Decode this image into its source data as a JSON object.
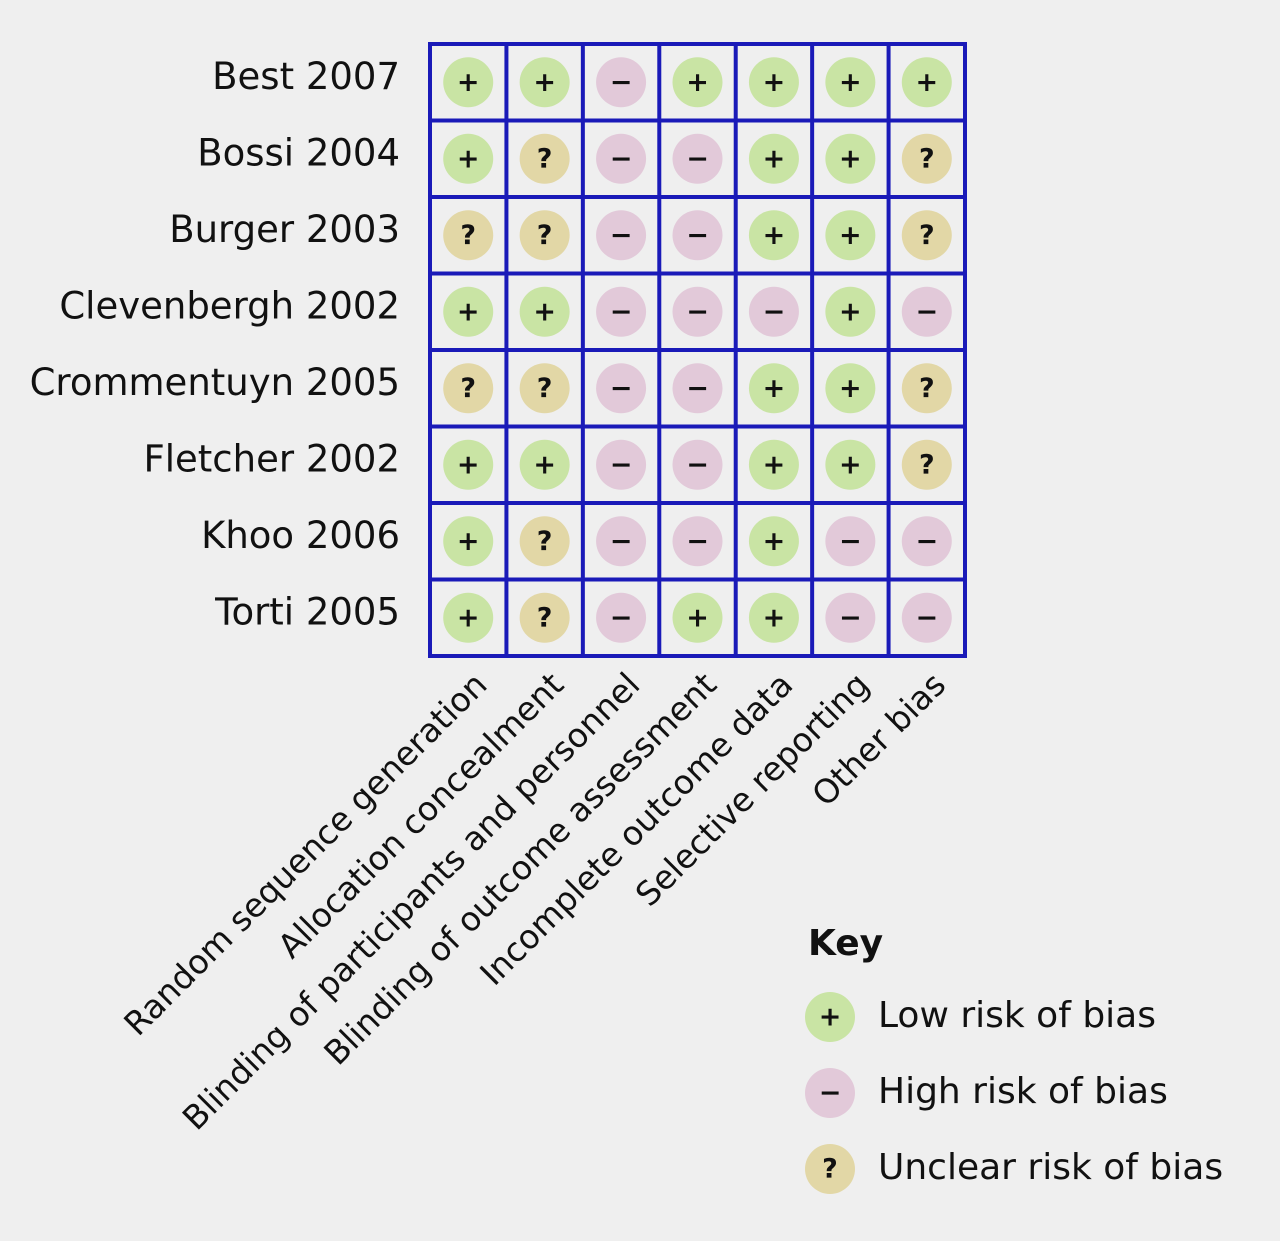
{
  "studies": [
    "Best 2007",
    "Bossi 2004",
    "Burger 2003",
    "Clevenbergh 2002",
    "Crommentuyn 2005",
    "Fletcher 2002",
    "Khoo 2006",
    "Torti 2005"
  ],
  "domains": [
    "Random sequence generation",
    "Allocation concealment",
    "Blinding of participants and personnel",
    "Blinding of outcome assessment",
    "Incomplete outcome data",
    "Selective reporting",
    "Other bias"
  ],
  "cells": [
    [
      "+",
      "+",
      "−",
      "+",
      "+",
      "+",
      "+"
    ],
    [
      "+",
      "?",
      "−",
      "−",
      "+",
      "+",
      "?"
    ],
    [
      "?",
      "?",
      "−",
      "−",
      "+",
      "+",
      "?"
    ],
    [
      "+",
      "+",
      "−",
      "−",
      "−",
      "+",
      "−"
    ],
    [
      "?",
      "?",
      "−",
      "−",
      "+",
      "+",
      "?"
    ],
    [
      "+",
      "+",
      "−",
      "−",
      "+",
      "+",
      "?"
    ],
    [
      "+",
      "?",
      "−",
      "−",
      "+",
      "−",
      "−"
    ],
    [
      "+",
      "?",
      "−",
      "+",
      "+",
      "−",
      "−"
    ]
  ],
  "key": {
    "title": "Key",
    "items": [
      {
        "symbol": "+",
        "label": "Low risk of bias",
        "color": "#c9e4a4"
      },
      {
        "symbol": "−",
        "label": "High risk of bias",
        "color": "#e2c9d9"
      },
      {
        "symbol": "?",
        "label": "Unclear risk of bias",
        "color": "#e2d7a6"
      }
    ]
  }
}
